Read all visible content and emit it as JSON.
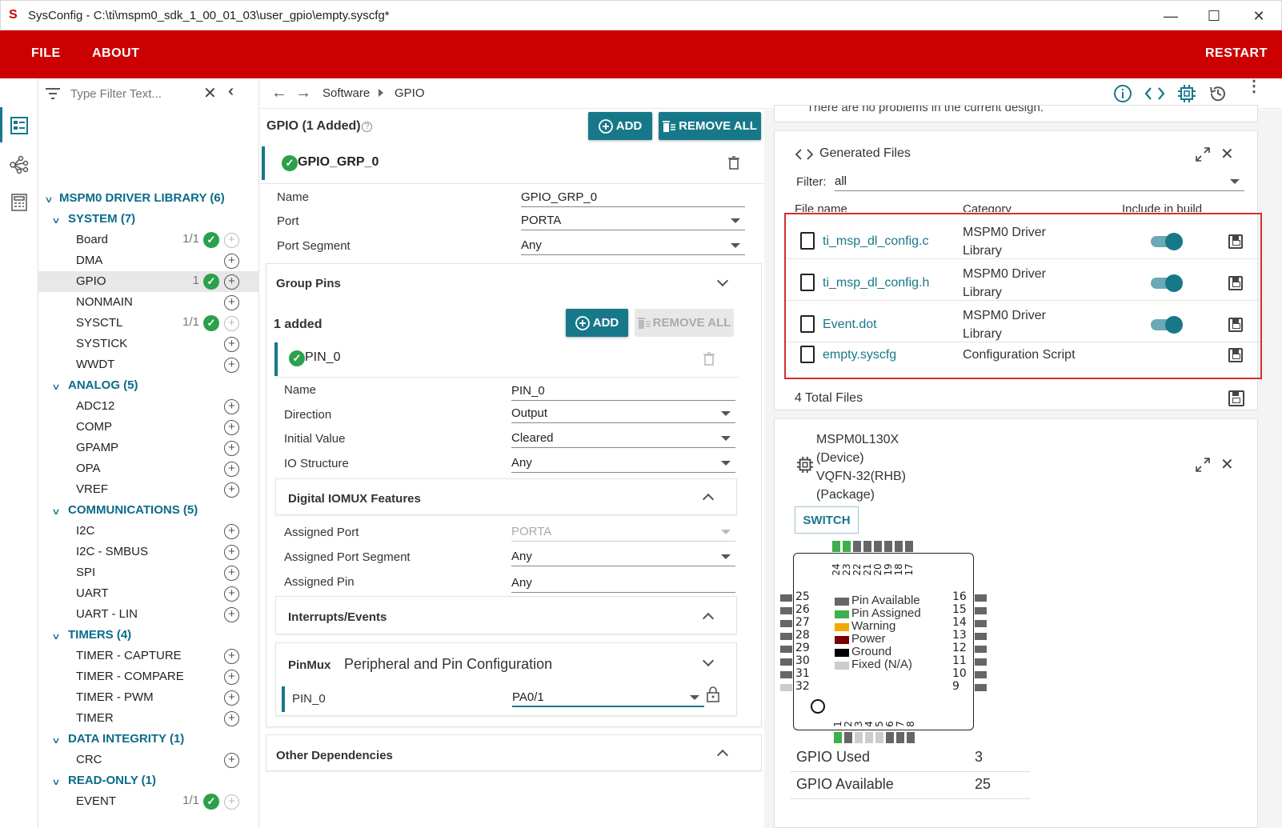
{
  "window": {
    "title": "SysConfig - C:\\ti\\mspm0_sdk_1_00_01_03\\user_gpio\\empty.syscfg*",
    "minimize": "—",
    "maximize": "☐",
    "close": "✕"
  },
  "menu": {
    "file": "FILE",
    "about": "ABOUT",
    "restart": "RESTART"
  },
  "filter": {
    "placeholder": "Type Filter Text..."
  },
  "tree": {
    "root": "MSPM0 DRIVER LIBRARY (6)",
    "system": "SYSTEM (7)",
    "system_items": [
      {
        "label": "Board",
        "count": "1/1"
      },
      {
        "label": "DMA",
        "count": ""
      },
      {
        "label": "GPIO",
        "count": "1"
      },
      {
        "label": "NONMAIN",
        "count": ""
      },
      {
        "label": "SYSCTL",
        "count": "1/1"
      },
      {
        "label": "SYSTICK",
        "count": ""
      },
      {
        "label": "WWDT",
        "count": ""
      }
    ],
    "analog": "ANALOG (5)",
    "analog_items": [
      "ADC12",
      "COMP",
      "GPAMP",
      "OPA",
      "VREF"
    ],
    "comm": "COMMUNICATIONS (5)",
    "comm_items": [
      "I2C",
      "I2C - SMBUS",
      "SPI",
      "UART",
      "UART - LIN"
    ],
    "timers": "TIMERS (4)",
    "timer_items": [
      "TIMER - CAPTURE",
      "TIMER - COMPARE",
      "TIMER - PWM",
      "TIMER"
    ],
    "integrity": "DATA INTEGRITY (1)",
    "integrity_items": [
      "CRC"
    ],
    "readonly": "READ-ONLY (1)",
    "readonly_items": [
      {
        "label": "EVENT",
        "count": "1/1"
      }
    ]
  },
  "breadcrumb": {
    "software": "Software",
    "gpio": "GPIO"
  },
  "gpio": {
    "header": "GPIO (1 Added)",
    "add": "ADD",
    "remove_all": "REMOVE ALL",
    "group_name": "GPIO_GRP_0",
    "fields": {
      "name_lbl": "Name",
      "name_val": "GPIO_GRP_0",
      "port_lbl": "Port",
      "port_val": "PORTA",
      "seg_lbl": "Port Segment",
      "seg_val": "Any"
    },
    "group_pins": "Group Pins",
    "added": "1 added",
    "pin_add": "ADD",
    "pin_remove_all": "REMOVE ALL",
    "pin_name": "PIN_0",
    "pin_fields": {
      "name_lbl": "Name",
      "name_val": "PIN_0",
      "dir_lbl": "Direction",
      "dir_val": "Output",
      "init_lbl": "Initial Value",
      "init_val": "Cleared",
      "io_lbl": "IO Structure",
      "io_val": "Any"
    },
    "iomux": "Digital IOMUX Features",
    "iomux_fields": {
      "ap_lbl": "Assigned Port",
      "ap_val": "PORTA",
      "aps_lbl": "Assigned Port Segment",
      "aps_val": "Any",
      "apin_lbl": "Assigned Pin",
      "apin_val": "Any"
    },
    "interrupts": "Interrupts/Events",
    "pinmux": "PinMux",
    "pinmux_sub": "Peripheral and Pin Configuration",
    "pinmux_pin": "PIN_0",
    "pinmux_val": "PA0/1",
    "other_deps": "Other Dependencies"
  },
  "problems": {
    "text": "There are no problems in the current design."
  },
  "generated": {
    "title": "Generated Files",
    "filter_lbl": "Filter:",
    "filter_val": "all",
    "col_file": "File name",
    "col_cat": "Category",
    "col_inc": "Include in build",
    "files": [
      {
        "name": "ti_msp_dl_config.c",
        "cat1": "MSPM0 Driver",
        "cat2": "Library"
      },
      {
        "name": "ti_msp_dl_config.h",
        "cat1": "MSPM0 Driver",
        "cat2": "Library"
      },
      {
        "name": "Event.dot",
        "cat1": "MSPM0 Driver",
        "cat2": "Library"
      },
      {
        "name": "empty.syscfg",
        "cat1": "Configuration Script",
        "cat2": ""
      }
    ],
    "total": "4 Total Files",
    "accent": "#17788a",
    "highlight": "#d32f2f"
  },
  "device": {
    "l1": "MSPM0L130X",
    "l2": "(Device)",
    "l3": "VQFN-32(RHB)",
    "l4": "(Package)",
    "switch": "SWITCH",
    "legend": [
      "Pin Available",
      "Pin Assigned",
      "Warning",
      "Power",
      "Ground",
      "Fixed (N/A)"
    ],
    "legend_colors": [
      "#666666",
      "#3cb04a",
      "#f2a900",
      "#7a0000",
      "#000000",
      "#cccccc"
    ],
    "top_pins": [
      "24",
      "23",
      "22",
      "21",
      "20",
      "19",
      "18",
      "17"
    ],
    "left_pins": [
      "25",
      "26",
      "27",
      "28",
      "29",
      "30",
      "31",
      "32"
    ],
    "right_pins": [
      "16",
      "15",
      "14",
      "13",
      "12",
      "11",
      "10",
      "9"
    ],
    "bottom_pins": [
      "1",
      "2",
      "3",
      "4",
      "5",
      "6",
      "7",
      "8"
    ],
    "gpio_used_lbl": "GPIO Used",
    "gpio_used": "3",
    "gpio_avail_lbl": "GPIO Available",
    "gpio_avail": "25"
  }
}
